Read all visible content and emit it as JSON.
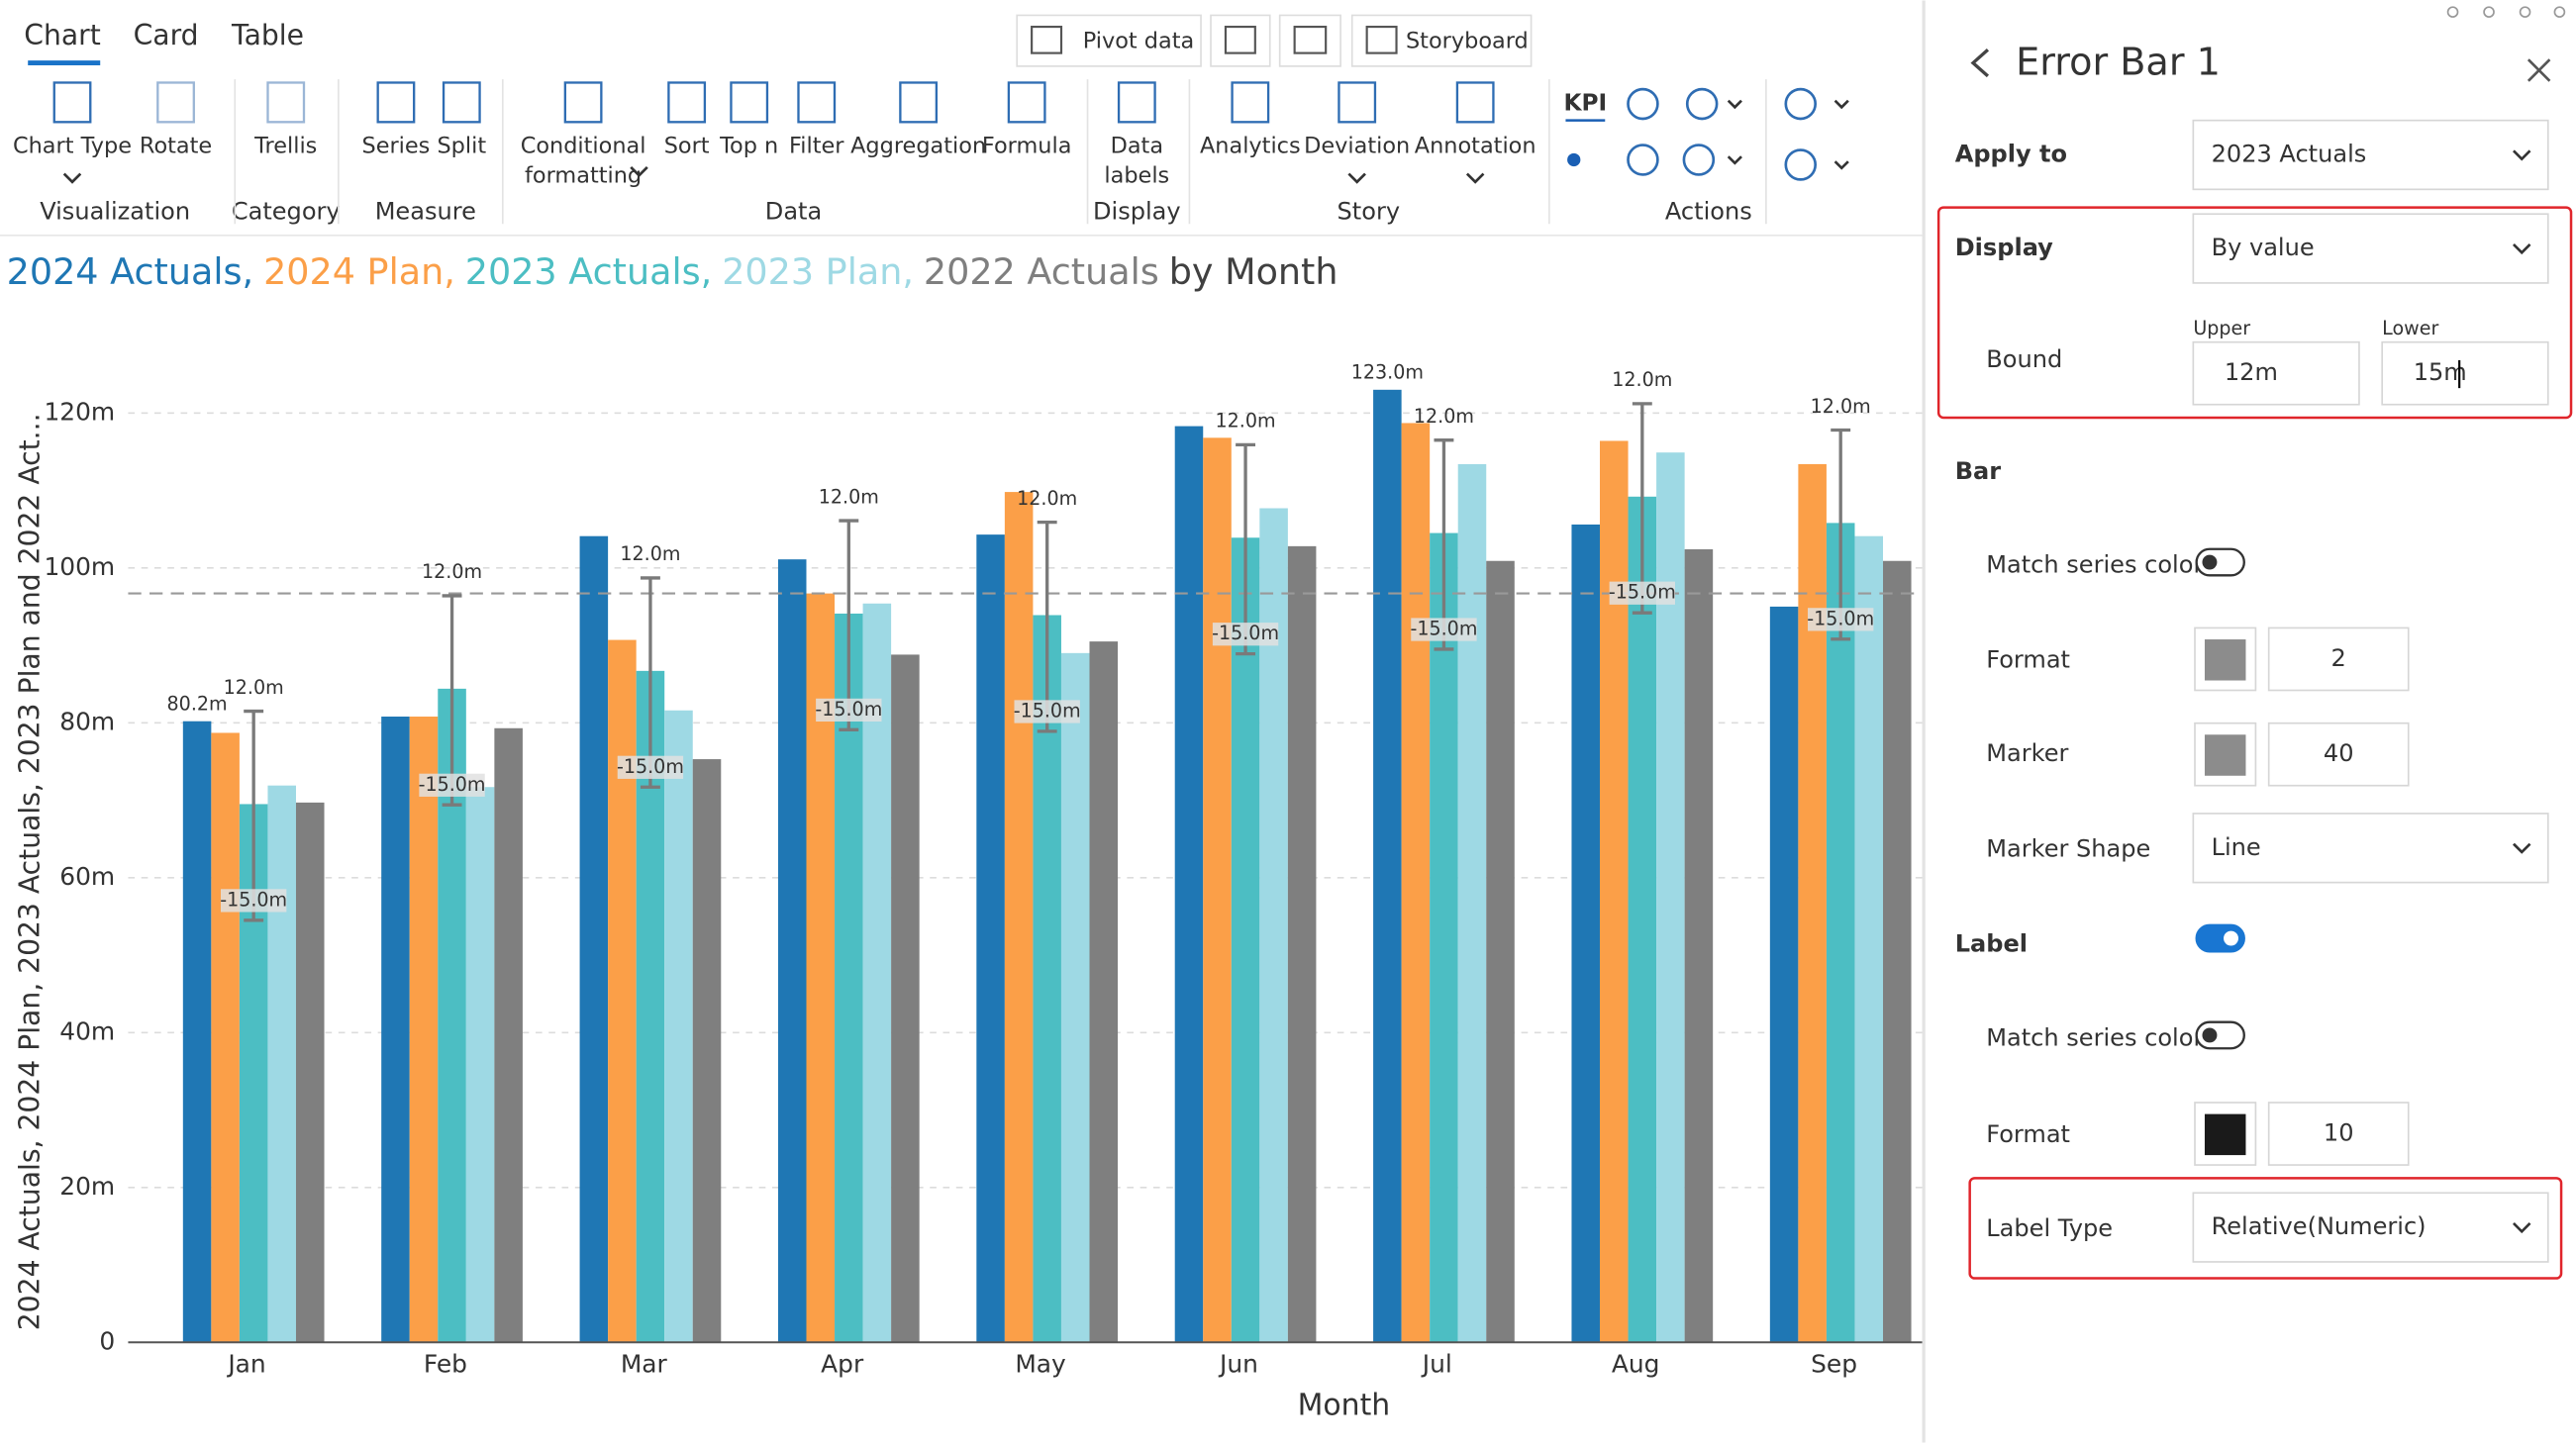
{
  "toolbar": {
    "tabs": [
      "Chart",
      "Card",
      "Table"
    ],
    "top_buttons": [
      "Pivot data",
      "Storyboard"
    ],
    "kpi": "KPI",
    "buttons": [
      [
        "Chart Type"
      ],
      [
        "Rotate"
      ],
      [
        "Trellis"
      ],
      [
        "Series"
      ],
      [
        "Split"
      ],
      [
        "Conditional",
        "formatting"
      ],
      [
        "Sort"
      ],
      [
        "Top n"
      ],
      [
        "Filter"
      ],
      [
        "Aggregation"
      ],
      [
        "Formula"
      ],
      [
        "Data",
        "labels"
      ],
      [
        "Analytics"
      ],
      [
        "Deviation"
      ],
      [
        "Annotation"
      ]
    ],
    "groups": [
      "Visualization",
      "Category",
      "Measure",
      "Data",
      "Display",
      "Story",
      "Actions"
    ]
  },
  "panel": {
    "title": "Error Bar 1",
    "apply_to": {
      "label": "Apply to",
      "value": "2023 Actuals"
    },
    "display": {
      "label": "Display",
      "value": "By value"
    },
    "bound": {
      "label": "Bound",
      "upper_label": "Upper",
      "upper": "12m",
      "lower_label": "Lower",
      "lower": "15m"
    },
    "bar": {
      "label": "Bar",
      "match_label": "Match series color",
      "match": false,
      "format_label": "Format",
      "format_color": "#8c8c8c",
      "format": 2,
      "marker_label": "Marker",
      "marker_color": "#8c8c8c",
      "marker": 40,
      "marker_shape_label": "Marker Shape",
      "marker_shape": "Line"
    },
    "label": {
      "label": "Label",
      "enabled": true,
      "match_label": "Match series color",
      "match": false,
      "format_label": "Format",
      "format_color": "#1a1a1a",
      "format": 10,
      "type_label": "Label Type",
      "type": "Relative(Numeric)"
    }
  },
  "chart_data": {
    "type": "bar",
    "title_parts": [
      "2024 Actuals,",
      "2024 Plan,",
      "2023 Actuals,",
      "2023 Plan,",
      "2022 Actuals",
      "by Month"
    ],
    "x_label": "Month",
    "y_label": "2024 Actuals, 2024 Plan, 2023 Actuals, 2023 Plan and 2022 Act...",
    "categories": [
      "Jan",
      "Feb",
      "Mar",
      "Apr",
      "May",
      "Jun",
      "Jul",
      "Aug",
      "Sep"
    ],
    "series": [
      {
        "name": "2024 Actuals",
        "color": "#1f77b4",
        "values": [
          80.2,
          80.8,
          104.1,
          101.1,
          104.3,
          118.3,
          123.0,
          105.6,
          95.0
        ],
        "value_labels": [
          "80.2m",
          null,
          null,
          null,
          null,
          null,
          "123.0m",
          null,
          null
        ]
      },
      {
        "name": "2024 Plan",
        "color": "#fb9f48",
        "values": [
          78.7,
          80.8,
          90.7,
          96.7,
          109.8,
          116.8,
          118.7,
          116.4,
          113.4
        ]
      },
      {
        "name": "2023 Actuals",
        "color": "#4cbec3",
        "values": [
          69.5,
          84.4,
          86.7,
          94.1,
          93.9,
          103.9,
          104.5,
          109.2,
          105.8
        ]
      },
      {
        "name": "2023 Plan",
        "color": "#9ed9e4",
        "values": [
          71.9,
          71.7,
          81.6,
          95.4,
          89.0,
          107.7,
          113.4,
          114.9,
          104.1
        ]
      },
      {
        "name": "2022 Actuals",
        "color": "#7f7f7f",
        "values": [
          69.7,
          79.3,
          75.3,
          88.8,
          90.5,
          102.8,
          100.9,
          102.4,
          100.9
        ]
      }
    ],
    "error_bars": {
      "series_index": 2,
      "upper": 12,
      "lower": -15,
      "upper_label": "12.0m",
      "lower_label": "-15.0m",
      "color": "#7a7a7a"
    },
    "reference_value": 96.7,
    "ylim": [
      0,
      130
    ],
    "yticks": [
      0,
      {
        "value": 20,
        "label": "20m"
      },
      {
        "value": 40,
        "label": "40m"
      },
      {
        "value": 60,
        "label": "60m"
      },
      {
        "value": 80,
        "label": "80m"
      },
      {
        "value": 100,
        "label": "100m"
      },
      {
        "value": 120,
        "label": "120m"
      }
    ],
    "grid": true
  }
}
